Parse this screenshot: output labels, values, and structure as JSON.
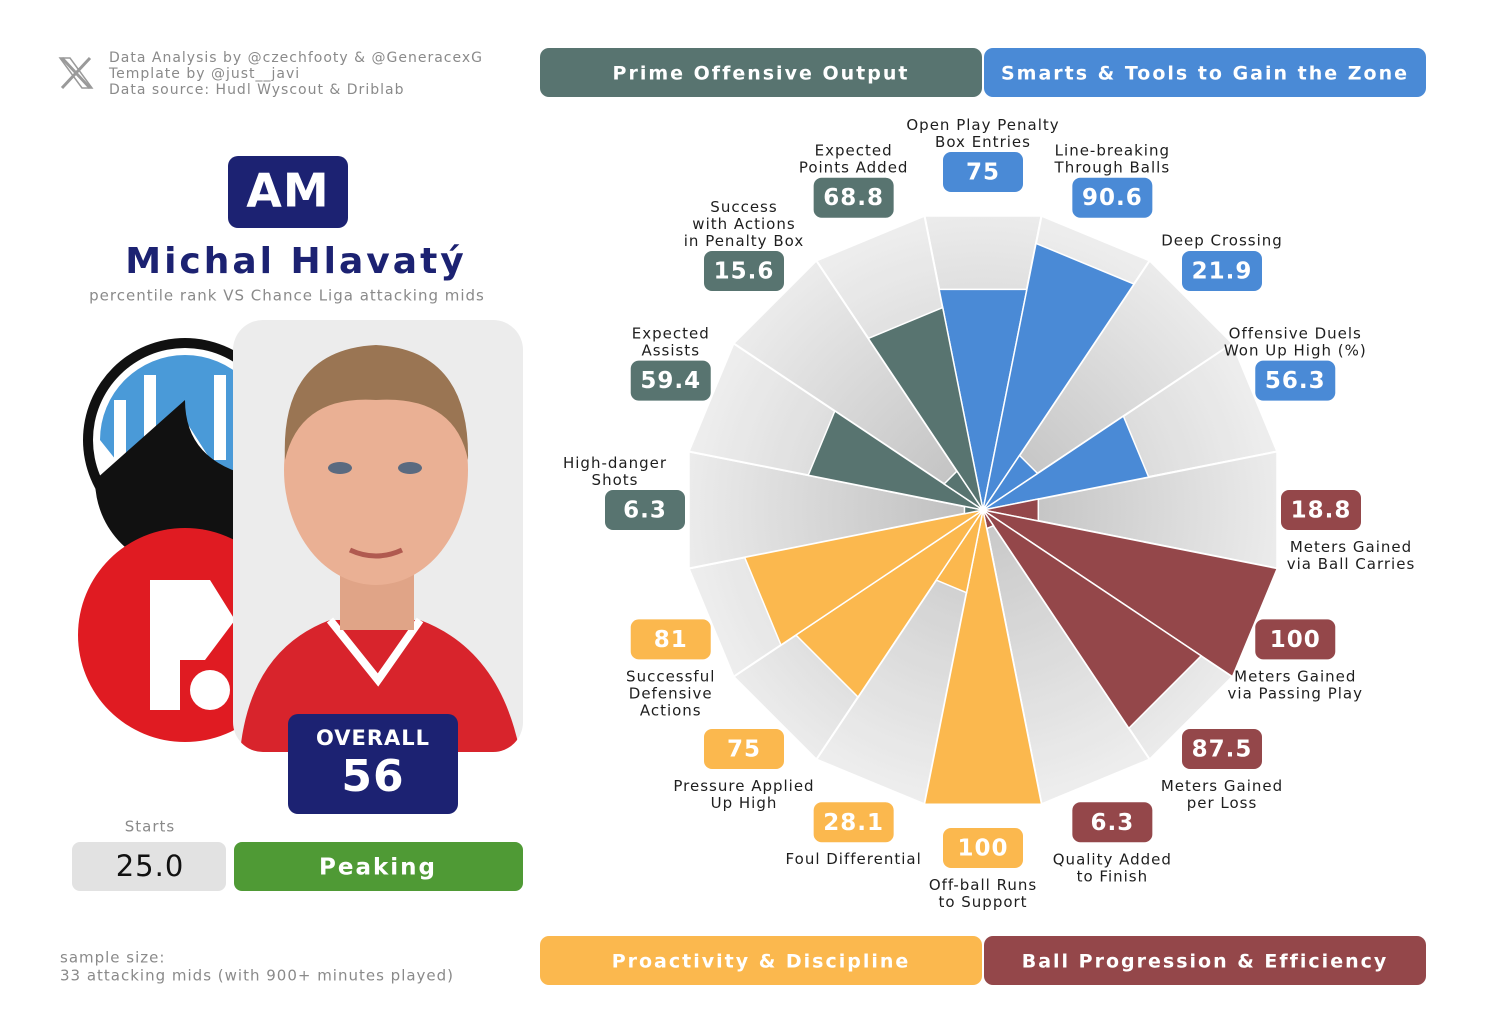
{
  "credits": [
    "Data Analysis by @czechfooty & @GeneracexG",
    "Template by @just__javi",
    "Data source: Hudl Wyscout & Driblab"
  ],
  "player": {
    "position": "AM",
    "name": "Michal Hlavatý",
    "subtitle": "percentile rank VS Chance Liga attacking mids",
    "overall_label": "OVERALL",
    "overall": 56,
    "starts_label": "Starts",
    "starts": "25.0",
    "status": "Peaking"
  },
  "sample": [
    "sample size:",
    "33 attacking mids (with 900+ minutes played)"
  ],
  "chart_data": {
    "type": "pizza",
    "rlim": [
      0,
      100
    ],
    "series": [
      {
        "name": "Smarts & Tools to Gain the Zone",
        "color": "#4a8ad6",
        "categories": [
          "Open Play Penalty\nBox Entries",
          "Line-breaking\nThrough Balls",
          "Deep Crossing",
          "Offensive Duels\nWon Up High (%)"
        ],
        "values": [
          75,
          90.6,
          21.9,
          56.3
        ]
      },
      {
        "name": "Ball Progression & Efficiency",
        "color": "#94474a",
        "categories": [
          "Meters Gained\nvia Ball Carries",
          "Meters Gained\nvia Passing Play",
          "Meters Gained\nper Loss",
          "Quality Added\nto Finish"
        ],
        "values": [
          18.8,
          100,
          87.5,
          6.3
        ]
      },
      {
        "name": "Proactivity & Discipline",
        "color": "#fbb84e",
        "categories": [
          "Off-ball Runs\nto Support",
          "Foul Differential",
          "Pressure Applied\nUp High",
          "Successful\nDefensive\nActions"
        ],
        "values": [
          100,
          28.1,
          75,
          81
        ]
      },
      {
        "name": "Prime Offensive Output",
        "color": "#587470",
        "categories": [
          "High-danger\nShots",
          "Expected\nAssists",
          "Success\nwith Actions\nin Penalty Box",
          "Expected\nPoints Added"
        ],
        "values": [
          6.3,
          59.4,
          15.6,
          68.8
        ]
      }
    ]
  }
}
